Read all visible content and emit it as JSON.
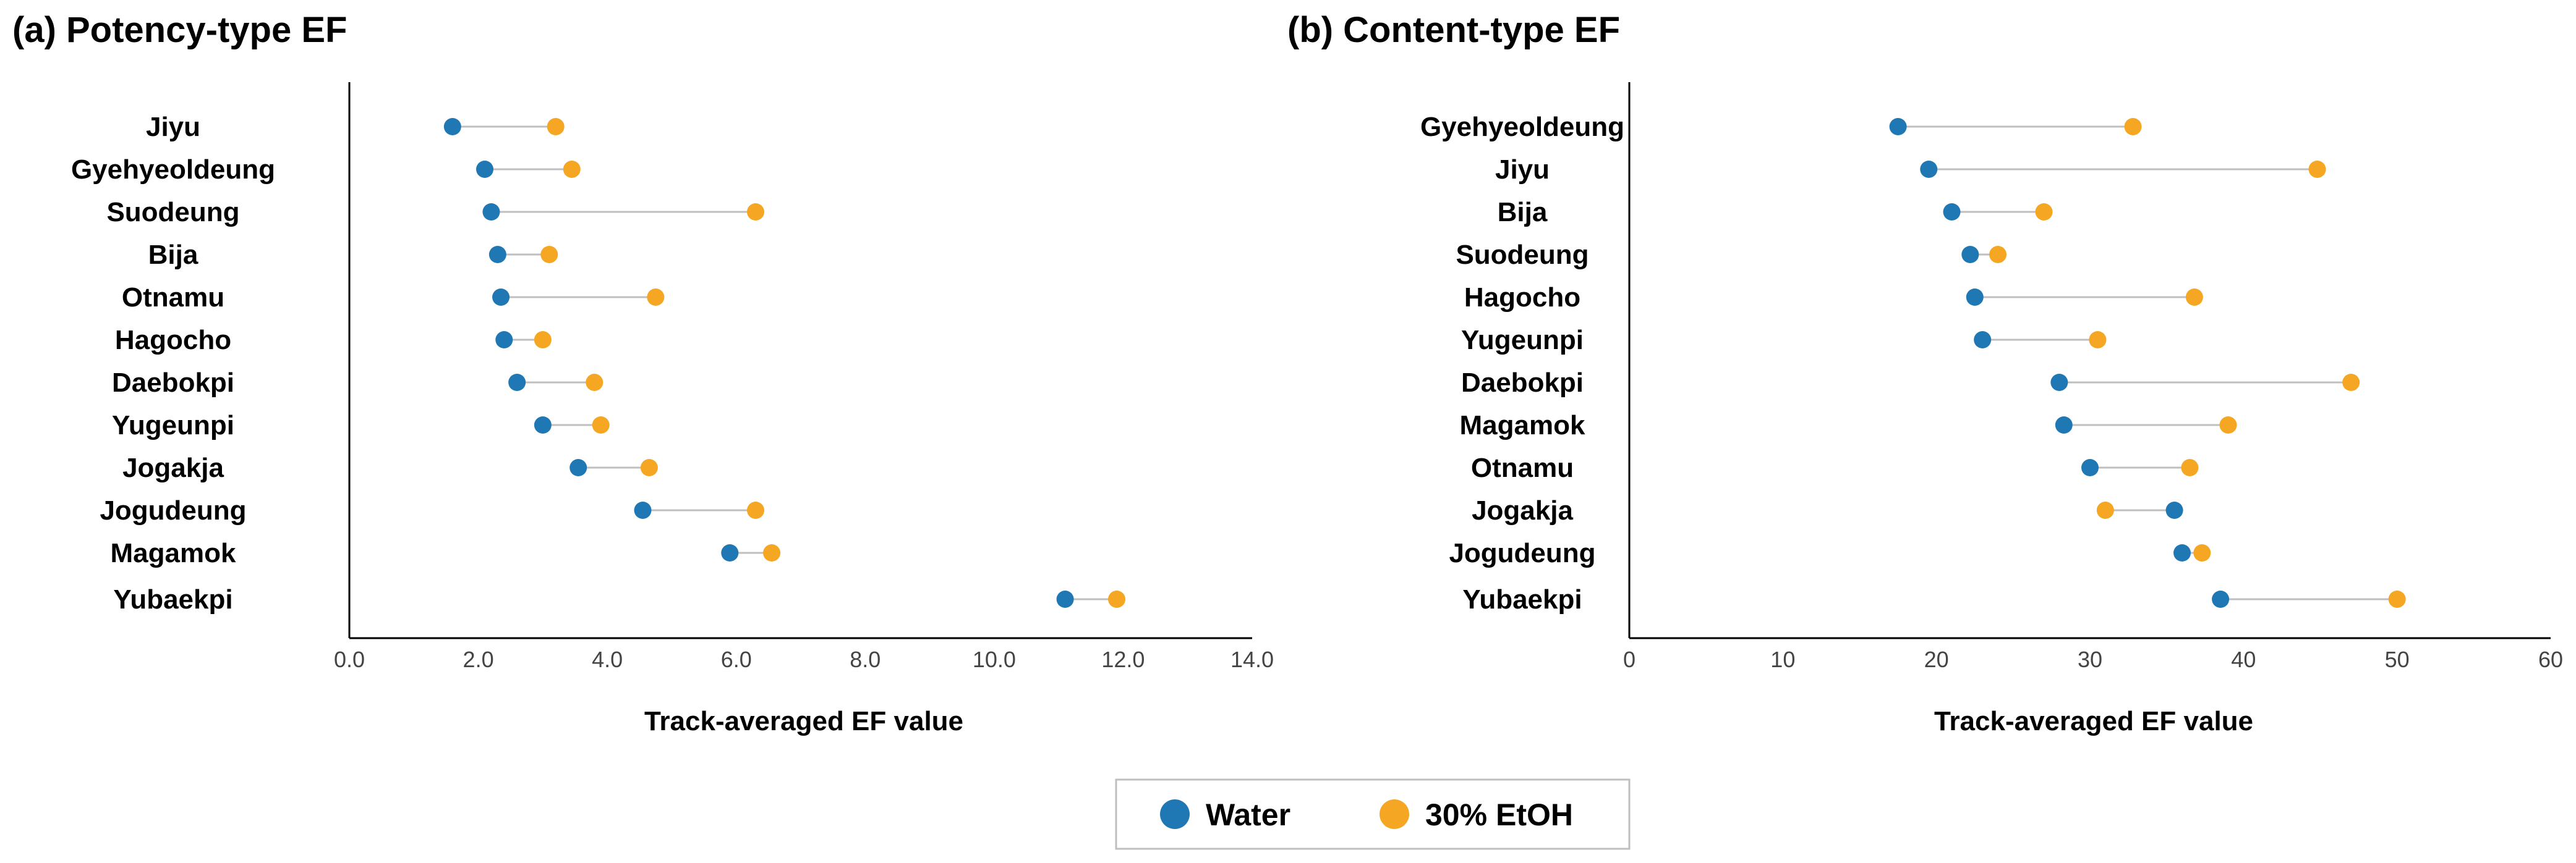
{
  "chart_data": [
    {
      "type": "dumbbell",
      "title": "(a) Potency-type EF",
      "xlabel": "Track-averaged EF value",
      "xlim": [
        0,
        14
      ],
      "xticks": [
        0,
        2,
        4,
        6,
        8,
        10,
        12,
        14
      ],
      "tick_labels": [
        "0.0",
        "2.0",
        "4.0",
        "6.0",
        "8.0",
        "10.0",
        "12.0",
        "14.0"
      ],
      "categories": [
        "Jiyu",
        "Gyehyeoldeung",
        "Suodeung",
        "Bija",
        "Otnamu",
        "Hagocho",
        "Daebokpi",
        "Yugeunpi",
        "Jogakja",
        "Jogudeung",
        "Magamok",
        "Yubaekpi"
      ],
      "series": [
        {
          "name": "Water",
          "values": [
            1.6,
            2.1,
            2.2,
            2.3,
            2.35,
            2.4,
            2.6,
            3.0,
            3.55,
            4.55,
            5.9,
            11.1
          ]
        },
        {
          "name": "30% EtOH",
          "values": [
            3.2,
            3.45,
            6.3,
            3.1,
            4.75,
            3.0,
            3.8,
            3.9,
            4.65,
            6.3,
            6.55,
            11.9
          ]
        }
      ],
      "grid": false
    },
    {
      "type": "dumbbell",
      "title": "(b) Content-type EF",
      "xlabel": "Track-averaged EF value",
      "xlim": [
        0,
        60
      ],
      "xticks": [
        0,
        10,
        20,
        30,
        40,
        50,
        60
      ],
      "tick_labels": [
        "0",
        "10",
        "20",
        "30",
        "40",
        "50",
        "60"
      ],
      "categories": [
        "Gyehyeoldeung",
        "Jiyu",
        "Bija",
        "Suodeung",
        "Hagocho",
        "Yugeunpi",
        "Daebokpi",
        "Magamok",
        "Otnamu",
        "Jogakja",
        "Jogudeung",
        "Yubaekpi"
      ],
      "series": [
        {
          "name": "Water",
          "values": [
            17.5,
            19.5,
            21.0,
            22.2,
            22.5,
            23.0,
            28.0,
            28.3,
            30.0,
            35.5,
            36.0,
            38.5
          ]
        },
        {
          "name": "30% EtOH",
          "values": [
            32.8,
            44.8,
            27.0,
            24.0,
            36.8,
            30.5,
            47.0,
            39.0,
            36.5,
            31.0,
            37.3,
            50.0
          ]
        }
      ],
      "grid": false
    }
  ],
  "legend": {
    "position": "bottom-center",
    "items": [
      {
        "label": "Water",
        "color": "#1F77B4"
      },
      {
        "label": "30%  EtOH",
        "color": "#F5A623"
      }
    ]
  },
  "colors": {
    "water": "#1F77B4",
    "etoh": "#F5A623",
    "connector": "#BFBFBF",
    "axis": "#000000"
  }
}
